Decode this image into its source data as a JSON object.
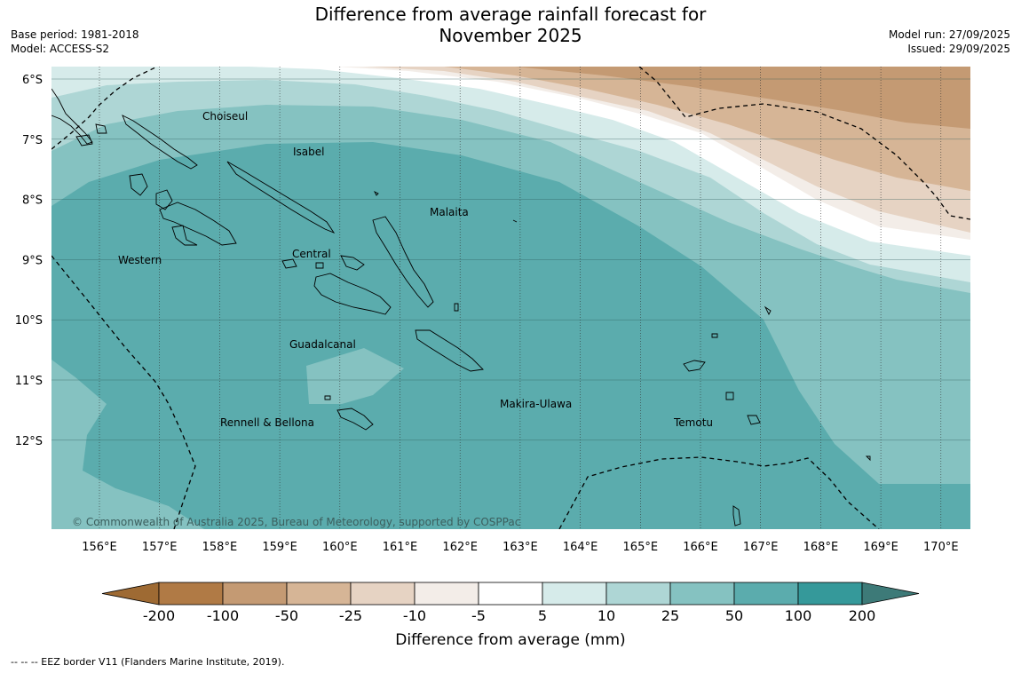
{
  "title_line1": "Difference from average rainfall forecast for",
  "title_line2": "November 2025",
  "base_period": "Base period: 1981-2018",
  "model": "Model: ACCESS-S2",
  "model_run": "Model run: 27/09/2025",
  "issued": "Issued: 29/09/2025",
  "copyright": "© Commonwealth of Australia 2025, Bureau of Meteorology, supported by COSPPac",
  "footnote": "--  --  -- EEZ border V11 (Flanders Marine Institute, 2019).",
  "latitude_labels": [
    "6°S",
    "7°S",
    "8°S",
    "9°S",
    "10°S",
    "11°S",
    "12°S"
  ],
  "longitude_labels": [
    "156°E",
    "157°E",
    "158°E",
    "159°E",
    "160°E",
    "161°E",
    "162°E",
    "163°E",
    "164°E",
    "165°E",
    "166°E",
    "167°E",
    "168°E",
    "169°E",
    "170°E"
  ],
  "places": [
    "Choiseul",
    "Isabel",
    "Malaita",
    "Western",
    "Central",
    "Guadalcanal",
    "Makira-Ulawa",
    "Rennell & Bellona",
    "Temotu"
  ],
  "colorbar": {
    "title": "Difference from average (mm)",
    "tick_labels": [
      "-200",
      "-100",
      "-50",
      "-25",
      "-10",
      "-5",
      "5",
      "10",
      "25",
      "50",
      "100",
      "200"
    ],
    "colors": [
      "#9e6a33",
      "#b07a45",
      "#c49a73",
      "#d6b596",
      "#e6d3c3",
      "#f3ede8",
      "#ffffff",
      "#d6ebea",
      "#aed6d5",
      "#85c2c1",
      "#5bacad",
      "#35999a",
      "#3d7a78"
    ]
  }
}
